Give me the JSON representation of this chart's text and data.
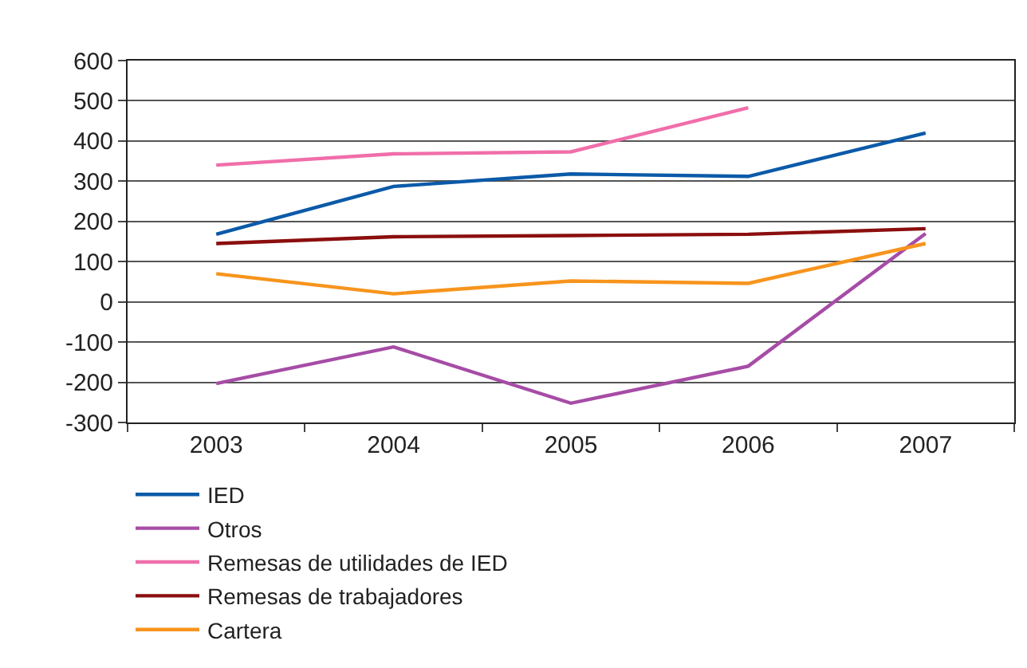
{
  "chart_data": {
    "type": "line",
    "categories": [
      "2003",
      "2004",
      "2005",
      "2006",
      "2007"
    ],
    "series": [
      {
        "name": "IED",
        "color": "#0b5aa8",
        "values": [
          168,
          287,
          318,
          312,
          420
        ]
      },
      {
        "name": "Otros",
        "color": "#a64ca6",
        "values": [
          -203,
          -112,
          -252,
          -160,
          170
        ]
      },
      {
        "name": "Remesas de utilidades de IED",
        "color": "#f06eaa",
        "values": [
          340,
          368,
          373,
          483,
          null
        ]
      },
      {
        "name": "Remesas de trabajadores",
        "color": "#8b0e0e",
        "values": [
          145,
          162,
          165,
          168,
          182
        ]
      },
      {
        "name": "Cartera",
        "color": "#f7941d",
        "values": [
          70,
          20,
          52,
          46,
          145
        ]
      }
    ],
    "ylim": [
      -300,
      600
    ],
    "yticks": [
      -300,
      -200,
      -100,
      0,
      100,
      200,
      300,
      400,
      500,
      600
    ],
    "grid": "y",
    "legend": "bottom",
    "marker": "none",
    "line_style": "solid"
  }
}
